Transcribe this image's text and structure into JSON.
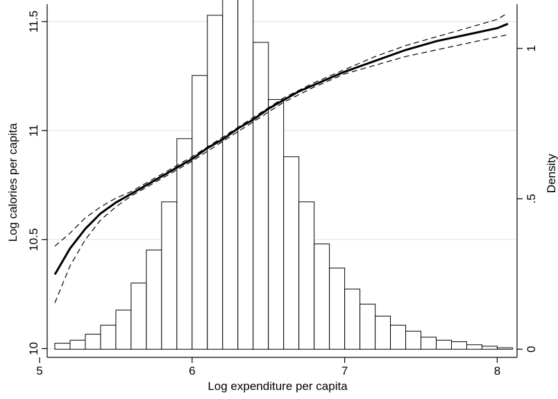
{
  "chart_data": {
    "type": "bar",
    "title": "",
    "xlabel": "Log expenditure per capita",
    "ylabel_left": "Log calories per capita",
    "ylabel_right": "Density",
    "xlim": [
      5.05,
      8.13
    ],
    "ylim_left": [
      9.96,
      11.58
    ],
    "ylim_right": [
      -0.027,
      1.147
    ],
    "xticks": [
      5,
      6,
      7,
      8
    ],
    "xtick_labels": [
      "5",
      "6",
      "7",
      "8"
    ],
    "yticks_left": [
      10,
      10.5,
      11,
      11.5
    ],
    "ytick_labels_left": [
      "10",
      "10.5",
      "11",
      "11.5"
    ],
    "yticks_right": [
      0,
      0.5,
      1
    ],
    "ytick_labels_right": [
      "0",
      ".5",
      "1"
    ],
    "grid": true,
    "histogram": {
      "bin_width": 0.1,
      "bin_start": 5.1,
      "densities": [
        0.02,
        0.03,
        0.05,
        0.08,
        0.13,
        0.22,
        0.33,
        0.49,
        0.7,
        0.91,
        1.11,
        1.23,
        1.24,
        1.02,
        0.83,
        0.64,
        0.49,
        0.35,
        0.27,
        0.2,
        0.15,
        0.11,
        0.08,
        0.06,
        0.04,
        0.03,
        0.025,
        0.015,
        0.01,
        0.005
      ]
    },
    "series": [
      {
        "type": "line",
        "style": "solid",
        "x": [
          5.1,
          5.2,
          5.3,
          5.4,
          5.5,
          5.6,
          5.7,
          5.8,
          5.9,
          6.0,
          6.1,
          6.2,
          6.3,
          6.4,
          6.5,
          6.6,
          6.7,
          6.8,
          6.9,
          7.0,
          7.2,
          7.4,
          7.6,
          7.8,
          8.0,
          8.07
        ],
        "y": [
          10.34,
          10.46,
          10.55,
          10.62,
          10.67,
          10.71,
          10.75,
          10.79,
          10.83,
          10.87,
          10.92,
          10.96,
          11.01,
          11.05,
          11.1,
          11.14,
          11.18,
          11.21,
          11.24,
          11.27,
          11.32,
          11.37,
          11.41,
          11.44,
          11.47,
          11.49
        ]
      },
      {
        "type": "line",
        "style": "dashed",
        "x": [
          5.1,
          5.2,
          5.3,
          5.4,
          5.5,
          5.6,
          5.7,
          5.8,
          5.9,
          6.0,
          6.2,
          6.4,
          6.6,
          6.8,
          7.0,
          7.2,
          7.4,
          7.6,
          7.8,
          8.0,
          8.07
        ],
        "y": [
          10.47,
          10.53,
          10.6,
          10.65,
          10.69,
          10.72,
          10.76,
          10.8,
          10.84,
          10.88,
          10.97,
          11.06,
          11.15,
          11.22,
          11.28,
          11.34,
          11.39,
          11.43,
          11.47,
          11.51,
          11.54
        ]
      },
      {
        "type": "line",
        "style": "dashed",
        "x": [
          5.1,
          5.2,
          5.3,
          5.4,
          5.5,
          5.6,
          5.7,
          5.8,
          5.9,
          6.0,
          6.2,
          6.4,
          6.6,
          6.8,
          7.0,
          7.2,
          7.4,
          7.6,
          7.8,
          8.0,
          8.07
        ],
        "y": [
          10.21,
          10.38,
          10.5,
          10.59,
          10.65,
          10.7,
          10.74,
          10.78,
          10.82,
          10.86,
          10.95,
          11.04,
          11.13,
          11.2,
          11.26,
          11.3,
          11.34,
          11.37,
          11.4,
          11.43,
          11.44
        ]
      }
    ]
  }
}
